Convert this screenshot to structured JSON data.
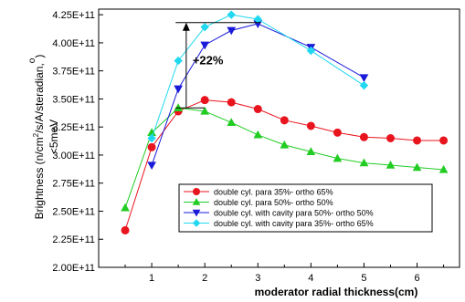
{
  "chart_data": {
    "type": "line",
    "xlabel": "moderator radial thickness(cm)",
    "ylabel_main": "Brightness (n/cm",
    "ylabel_sup2": "2",
    "ylabel_mid": "/s/A/steradian,",
    "ylabel_ring": "o",
    "ylabel_sub": "<5meV",
    "ylabel_close": ")",
    "xlim": [
      0,
      6.8
    ],
    "ylim": [
      200000000000,
      430000000000
    ],
    "x_ticks": [
      1,
      2,
      3,
      4,
      5,
      6
    ],
    "x_tick_labels": [
      "1",
      "2",
      "3",
      "4",
      "5",
      "6"
    ],
    "y_ticks": [
      200000000000,
      225000000000,
      250000000000,
      275000000000,
      300000000000,
      325000000000,
      350000000000,
      375000000000,
      400000000000,
      425000000000
    ],
    "y_tick_labels": [
      "2.00E+11",
      "2.25E+11",
      "2.50E+11",
      "2.75E+11",
      "3.00E+11",
      "3.25E+11",
      "3.50E+11",
      "3.75E+11",
      "4.00E+11",
      "4.25E+11"
    ],
    "legend_position": "lower-center",
    "series": [
      {
        "name": "double cyl. para 35%- ortho 65%",
        "color": "#e8141e",
        "marker": "circle",
        "x": [
          0.5,
          1.0,
          1.5,
          2.0,
          2.5,
          3.0,
          3.5,
          4.0,
          4.5,
          5.0,
          5.5,
          6.0,
          6.5
        ],
        "values": [
          233000000000,
          307000000000,
          339000000000,
          349000000000,
          347000000000,
          341000000000,
          331000000000,
          326000000000,
          320000000000,
          316000000000,
          315000000000,
          313000000000,
          313000000000
        ]
      },
      {
        "name": "double cyl. para 50%- ortho 50%",
        "color": "#22cc22",
        "marker": "triangle-up",
        "x": [
          0.5,
          1.0,
          1.5,
          2.0,
          2.5,
          3.0,
          3.5,
          4.0,
          4.5,
          5.0,
          5.5,
          6.0,
          6.5
        ],
        "values": [
          253000000000,
          320000000000,
          342000000000,
          339000000000,
          329000000000,
          318000000000,
          309000000000,
          303000000000,
          297000000000,
          293000000000,
          291000000000,
          289000000000,
          287000000000
        ]
      },
      {
        "name": "double cyl.  with cavity para 50%- ortho 50%",
        "color": "#1a1ad9",
        "marker": "triangle-down",
        "x": [
          1.0,
          1.5,
          2.0,
          2.5,
          3.0,
          4.0,
          5.0
        ],
        "values": [
          291000000000,
          359000000000,
          398000000000,
          411000000000,
          417000000000,
          396000000000,
          369000000000
        ]
      },
      {
        "name": "double cyl.  with cavity para 35%- ortho 65%",
        "color": "#20d8f0",
        "marker": "diamond",
        "x": [
          1.0,
          1.5,
          2.0,
          2.5,
          3.0,
          4.0,
          5.0
        ],
        "values": [
          315000000000,
          384000000000,
          414000000000,
          425000000000,
          421000000000,
          393000000000,
          362000000000
        ]
      }
    ],
    "annotation": {
      "text": "+22%",
      "x": 1.65,
      "y_low": 342000000000,
      "y_high": 418000000000,
      "line_x_from": 1.45,
      "line_x_to": 3.05
    }
  }
}
